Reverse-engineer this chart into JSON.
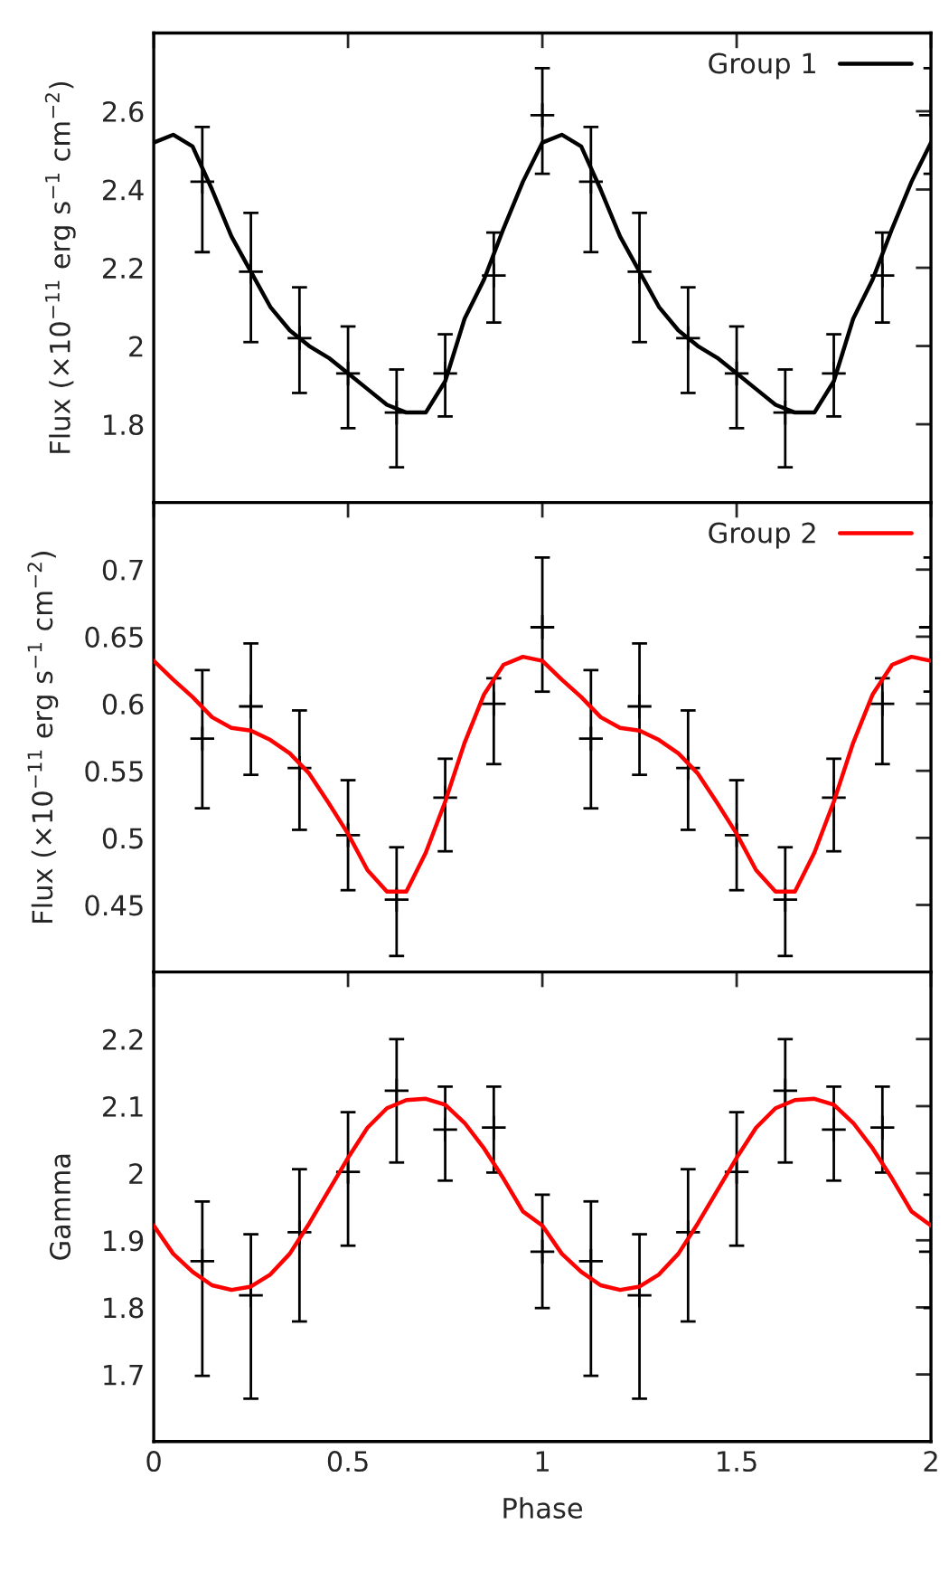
{
  "chart_data": [
    {
      "type": "scatter",
      "ylabel": "Flux (×10$^{−11}$ erg s$^{−1}$ cm$^{−2}$)",
      "xlim": [
        0,
        2
      ],
      "xticks": [
        0,
        0.5,
        1,
        1.5,
        2
      ],
      "ylim": [
        1.6,
        2.8
      ],
      "yticks": [
        1.8,
        2,
        2.2,
        2.4,
        2.6
      ],
      "tick_labels": "y",
      "grid": false,
      "legend": "top right",
      "series": [
        {
          "color": "#000000",
          "marker": "cross",
          "x": [
            0.125,
            0.25,
            0.375,
            0.5,
            0.625,
            0.75,
            0.875,
            1.0,
            1.125,
            1.25,
            1.375,
            1.5,
            1.625,
            1.75,
            1.875,
            2.0
          ],
          "values": [
            2.42,
            2.19,
            2.02,
            1.93,
            1.83,
            1.93,
            2.18,
            2.59,
            2.42,
            2.19,
            2.02,
            1.93,
            1.83,
            1.93,
            2.18,
            2.59
          ],
          "errors": [
            [
              2.24,
              2.56
            ],
            [
              2.01,
              2.34
            ],
            [
              1.88,
              2.15
            ],
            [
              1.79,
              2.05
            ],
            [
              1.69,
              1.94
            ],
            [
              1.82,
              2.03
            ],
            [
              2.06,
              2.29
            ],
            [
              2.44,
              2.71
            ],
            [
              2.24,
              2.56
            ],
            [
              2.01,
              2.34
            ],
            [
              1.88,
              2.15
            ],
            [
              1.79,
              2.05
            ],
            [
              1.69,
              1.94
            ],
            [
              1.82,
              2.03
            ],
            [
              2.06,
              2.29
            ],
            [
              2.44,
              2.71
            ]
          ]
        },
        {
          "type": "line",
          "name": "Group 1",
          "color": "#000000",
          "line_style": "solid",
          "marker": "none",
          "x": [
            0,
            0.05,
            0.1,
            0.15,
            0.2,
            0.25,
            0.3,
            0.35,
            0.4,
            0.45,
            0.5,
            0.55,
            0.6,
            0.65,
            0.7,
            0.75,
            0.8,
            0.85,
            0.9,
            0.95,
            1.0,
            1.05,
            1.1,
            1.15,
            1.2,
            1.25,
            1.3,
            1.35,
            1.4,
            1.45,
            1.5,
            1.55,
            1.6,
            1.65,
            1.7,
            1.75,
            1.8,
            1.85,
            1.9,
            1.95,
            2.0
          ],
          "values": [
            2.52,
            2.54,
            2.51,
            2.4,
            2.28,
            2.19,
            2.1,
            2.04,
            2.0,
            1.97,
            1.93,
            1.89,
            1.85,
            1.83,
            1.83,
            1.91,
            2.07,
            2.17,
            2.3,
            2.42,
            2.52,
            2.54,
            2.51,
            2.4,
            2.28,
            2.19,
            2.1,
            2.04,
            2.0,
            1.97,
            1.93,
            1.89,
            1.85,
            1.83,
            1.83,
            1.91,
            2.07,
            2.17,
            2.3,
            2.42,
            2.52
          ]
        }
      ]
    },
    {
      "type": "scatter",
      "ylabel": "Flux (×10$^{−11}$ erg s$^{−1}$ cm$^{−2}$)",
      "xlim": [
        0,
        2
      ],
      "xticks": [
        0,
        0.5,
        1,
        1.5,
        2
      ],
      "ylim": [
        0.4,
        0.75
      ],
      "yticks": [
        0.45,
        0.5,
        0.55,
        0.6,
        0.65,
        0.7
      ],
      "tick_labels": "y",
      "grid": false,
      "legend": "top right",
      "series": [
        {
          "color": "#000000",
          "marker": "cross",
          "x": [
            0.125,
            0.25,
            0.375,
            0.5,
            0.625,
            0.75,
            0.875,
            1.0,
            1.125,
            1.25,
            1.375,
            1.5,
            1.625,
            1.75,
            1.875,
            2.0
          ],
          "values": [
            0.574,
            0.598,
            0.552,
            0.502,
            0.454,
            0.53,
            0.6,
            0.657,
            0.574,
            0.598,
            0.552,
            0.502,
            0.454,
            0.53,
            0.6,
            0.657
          ],
          "errors": [
            [
              0.522,
              0.625
            ],
            [
              0.547,
              0.645
            ],
            [
              0.506,
              0.595
            ],
            [
              0.461,
              0.543
            ],
            [
              0.412,
              0.493
            ],
            [
              0.49,
              0.559
            ],
            [
              0.555,
              0.619
            ],
            [
              0.609,
              0.709
            ],
            [
              0.522,
              0.625
            ],
            [
              0.547,
              0.645
            ],
            [
              0.506,
              0.595
            ],
            [
              0.461,
              0.543
            ],
            [
              0.412,
              0.493
            ],
            [
              0.49,
              0.559
            ],
            [
              0.555,
              0.619
            ],
            [
              0.609,
              0.709
            ]
          ]
        },
        {
          "type": "line",
          "name": "Group 2",
          "color": "#ff0000",
          "line_style": "solid",
          "marker": "none",
          "x": [
            0,
            0.05,
            0.1,
            0.15,
            0.2,
            0.25,
            0.3,
            0.35,
            0.4,
            0.45,
            0.5,
            0.55,
            0.6,
            0.65,
            0.7,
            0.75,
            0.8,
            0.85,
            0.9,
            0.95,
            1.0,
            1.05,
            1.1,
            1.15,
            1.2,
            1.25,
            1.3,
            1.35,
            1.4,
            1.45,
            1.5,
            1.55,
            1.6,
            1.65,
            1.7,
            1.75,
            1.8,
            1.85,
            1.9,
            1.95,
            2.0
          ],
          "values": [
            0.632,
            0.618,
            0.605,
            0.59,
            0.582,
            0.58,
            0.573,
            0.563,
            0.548,
            0.526,
            0.503,
            0.476,
            0.46,
            0.46,
            0.489,
            0.527,
            0.571,
            0.607,
            0.629,
            0.635,
            0.632,
            0.618,
            0.605,
            0.59,
            0.582,
            0.58,
            0.573,
            0.563,
            0.548,
            0.526,
            0.503,
            0.476,
            0.46,
            0.46,
            0.489,
            0.527,
            0.571,
            0.607,
            0.629,
            0.635,
            0.632
          ]
        }
      ]
    },
    {
      "type": "scatter",
      "ylabel": "Gamma",
      "xlabel": "Phase",
      "xlim": [
        0,
        2
      ],
      "xticks": [
        0,
        0.5,
        1,
        1.5,
        2
      ],
      "ylim": [
        1.6,
        2.3
      ],
      "yticks": [
        1.7,
        1.8,
        1.9,
        2,
        2.1,
        2.2
      ],
      "grid": false,
      "series": [
        {
          "color": "#000000",
          "marker": "cross",
          "x": [
            0.125,
            0.25,
            0.375,
            0.5,
            0.625,
            0.75,
            0.875,
            1.0,
            1.125,
            1.25,
            1.375,
            1.5,
            1.625,
            1.75,
            1.875,
            2.0
          ],
          "values": [
            1.869,
            1.818,
            1.912,
            2.002,
            2.123,
            2.065,
            2.068,
            1.883,
            1.869,
            1.818,
            1.912,
            2.002,
            2.123,
            2.065,
            2.068,
            1.883
          ],
          "errors": [
            [
              1.698,
              1.958
            ],
            [
              1.664,
              1.909
            ],
            [
              1.779,
              2.006
            ],
            [
              1.892,
              2.091
            ],
            [
              2.016,
              2.2
            ],
            [
              1.989,
              2.129
            ],
            [
              2.001,
              2.129
            ],
            [
              1.799,
              1.968
            ],
            [
              1.698,
              1.958
            ],
            [
              1.664,
              1.909
            ],
            [
              1.779,
              2.006
            ],
            [
              1.892,
              2.091
            ],
            [
              2.016,
              2.2
            ],
            [
              1.989,
              2.129
            ],
            [
              2.001,
              2.129
            ],
            [
              1.799,
              1.968
            ]
          ]
        },
        {
          "type": "line",
          "color": "#ff0000",
          "line_style": "solid",
          "marker": "none",
          "x": [
            0,
            0.05,
            0.1,
            0.15,
            0.2,
            0.25,
            0.3,
            0.35,
            0.4,
            0.45,
            0.5,
            0.55,
            0.6,
            0.65,
            0.7,
            0.75,
            0.8,
            0.85,
            0.9,
            0.95,
            1.0,
            1.05,
            1.1,
            1.15,
            1.2,
            1.25,
            1.3,
            1.35,
            1.4,
            1.45,
            1.5,
            1.55,
            1.6,
            1.65,
            1.7,
            1.75,
            1.8,
            1.85,
            1.9,
            1.95,
            2.0
          ],
          "values": [
            1.922,
            1.88,
            1.853,
            1.833,
            1.826,
            1.831,
            1.849,
            1.88,
            1.925,
            1.974,
            2.023,
            2.068,
            2.097,
            2.109,
            2.111,
            2.102,
            2.075,
            2.037,
            1.992,
            1.943,
            1.922,
            1.88,
            1.853,
            1.833,
            1.826,
            1.831,
            1.849,
            1.88,
            1.925,
            1.974,
            2.023,
            2.068,
            2.097,
            2.109,
            2.111,
            2.102,
            2.075,
            2.037,
            1.992,
            1.943,
            1.922
          ]
        }
      ]
    }
  ]
}
